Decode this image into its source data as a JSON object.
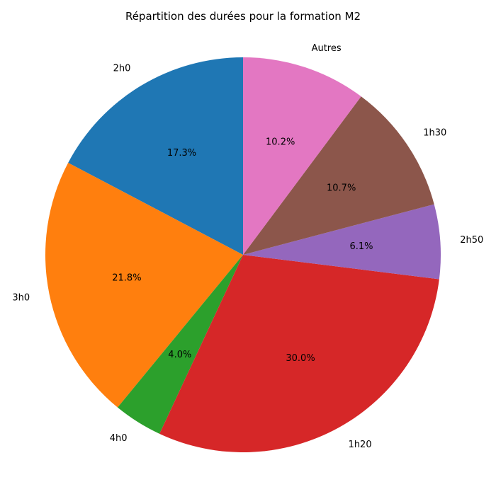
{
  "chart_data": {
    "type": "pie",
    "title": "Répartition des durées pour la formation M2",
    "start_angle_deg": 90,
    "direction": "counterclockwise",
    "slices": [
      {
        "label": "2h0",
        "value": 17.3,
        "pct_label": "17.3%",
        "color": "#1f77b4"
      },
      {
        "label": "3h0",
        "value": 21.8,
        "pct_label": "21.8%",
        "color": "#ff7f0e"
      },
      {
        "label": "4h0",
        "value": 4.0,
        "pct_label": "4.0%",
        "color": "#2ca02c"
      },
      {
        "label": "1h20",
        "value": 30.0,
        "pct_label": "30.0%",
        "color": "#d62728"
      },
      {
        "label": "2h50",
        "value": 6.1,
        "pct_label": "6.1%",
        "color": "#9467bd"
      },
      {
        "label": "1h30",
        "value": 10.7,
        "pct_label": "10.7%",
        "color": "#8c564b"
      },
      {
        "label": "Autres",
        "value": 10.2,
        "pct_label": "10.2%",
        "color": "#e377c2"
      }
    ]
  }
}
